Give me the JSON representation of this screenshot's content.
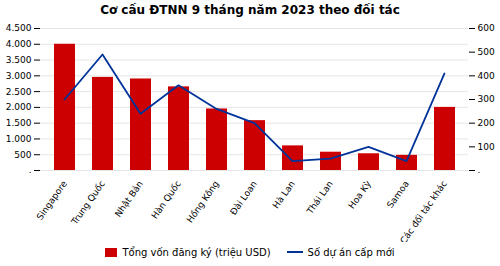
{
  "chart_data": {
    "type": "bar",
    "title": "Cơ cấu ĐTNN 9 tháng năm 2023 theo đối tác",
    "categories": [
      "Singapore",
      "Trung Quốc",
      "Nhật Bản",
      "Hàn Quốc",
      "Hồng Kông",
      "Đài Loan",
      "Hà Lan",
      "Thái Lan",
      "Hoa Kỳ",
      "Samoa",
      "Các đối tác khác"
    ],
    "series": [
      {
        "name": "Tổng vốn đăng ký (triệu USD)",
        "type": "bar",
        "color": "#cc0000",
        "values": [
          4000,
          2950,
          2900,
          2650,
          1950,
          1580,
          780,
          580,
          530,
          480,
          2000
        ]
      },
      {
        "name": "Số dự án cấp mới",
        "type": "line",
        "color": "#003399",
        "axis": "y2",
        "values": [
          300,
          490,
          240,
          360,
          260,
          200,
          40,
          50,
          100,
          40,
          410
        ]
      }
    ],
    "ylim": [
      0,
      4500
    ],
    "yticks": [
      {
        "value": 0,
        "label": "."
      },
      500,
      {
        "value": 1000,
        "label": "1.000"
      },
      {
        "value": 1500,
        "label": "1.500"
      },
      {
        "value": 2000,
        "label": "2.000"
      },
      {
        "value": 2500,
        "label": "2.500"
      },
      {
        "value": 3000,
        "label": "3.000"
      },
      {
        "value": 3500,
        "label": "3.500"
      },
      {
        "value": 4000,
        "label": "4.000"
      },
      {
        "value": 4500,
        "label": "4.500"
      }
    ],
    "y2lim": [
      0,
      600
    ],
    "y2ticks": [
      {
        "value": 0,
        "label": "."
      },
      100,
      200,
      300,
      400,
      500,
      600
    ],
    "grid": true,
    "legend": "bottom"
  }
}
